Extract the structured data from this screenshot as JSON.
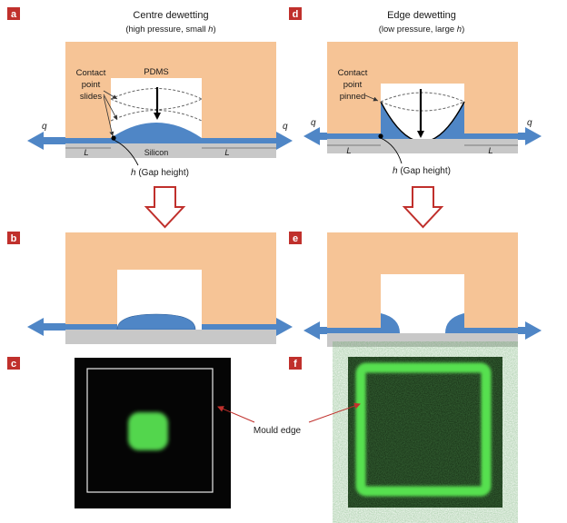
{
  "panels": {
    "a": {
      "letter": "a",
      "title_line1": "Centre dewetting",
      "title_line2_prefix": "(high pressure, small ",
      "title_line2_var": "h",
      "title_line2_suffix": ")",
      "contact_label": [
        "Contact",
        "point",
        "slides"
      ],
      "pdms_label": "PDMS",
      "silicon_label": "Silicon",
      "q_label": "q",
      "l_label": "L",
      "gap_var": "h",
      "gap_label": " (Gap height)"
    },
    "b": {
      "letter": "b"
    },
    "c": {
      "letter": "c"
    },
    "d": {
      "letter": "d",
      "title_line1": "Edge dewetting",
      "title_line2_prefix": "(low pressure, large ",
      "title_line2_var": "h",
      "title_line2_suffix": ")",
      "contact_label": [
        "Contact",
        "point",
        "pinned"
      ],
      "q_label": "q",
      "l_label": "L",
      "gap_var": "h",
      "gap_label": " (Gap height)"
    },
    "e": {
      "letter": "e"
    },
    "f": {
      "letter": "f"
    }
  },
  "mould_edge_label": "Mould edge",
  "colors": {
    "badge": "#c0302c",
    "pdms": "#f6c496",
    "fluid": "#4f86c6",
    "silicon": "#c8c8c8",
    "arrow_red": "#c0302c",
    "fluor": "#3ec83a"
  }
}
